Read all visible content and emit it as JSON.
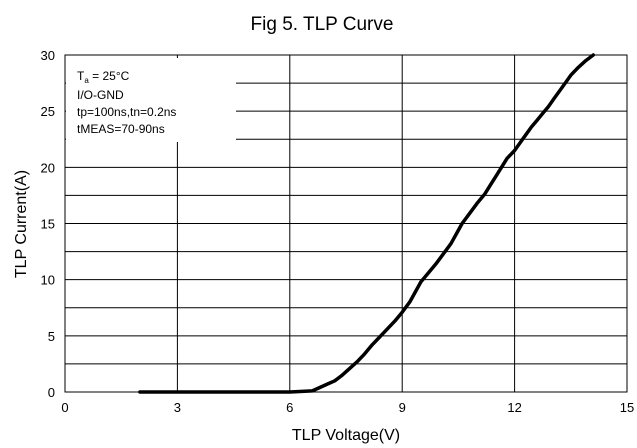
{
  "chart_data": {
    "type": "line",
    "title": "Fig 5. TLP Curve",
    "xlabel": "TLP Voltage(V)",
    "ylabel": "TLP Current(A)",
    "xlim": [
      0,
      15
    ],
    "ylim": [
      0,
      30
    ],
    "x_ticks": [
      0,
      3,
      6,
      9,
      12,
      15
    ],
    "y_ticks": [
      0,
      5,
      10,
      15,
      20,
      25,
      30
    ],
    "grid": true,
    "annotation": {
      "line1_main": "T",
      "line1_sub": "a",
      "line1_rest": " = 25°C",
      "line2": "I/O-GND",
      "line3": "tp=100ns,tn=0.2ns",
      "line4": "tMEAS=70-90ns"
    },
    "series": [
      {
        "color": "#000000",
        "x": [
          2.0,
          3.0,
          4.0,
          5.0,
          6.0,
          6.6,
          6.8,
          7.0,
          7.2,
          7.4,
          7.6,
          7.8,
          8.0,
          8.2,
          8.4,
          8.6,
          8.8,
          9.0,
          9.2,
          9.35,
          9.5,
          9.7,
          9.9,
          10.1,
          10.3,
          10.45,
          10.6,
          10.8,
          11.0,
          11.2,
          11.35,
          11.5,
          11.65,
          11.8,
          12.0,
          12.15,
          12.3,
          12.45,
          12.6,
          12.75,
          12.9,
          13.05,
          13.2,
          13.35,
          13.5,
          13.7,
          13.9,
          14.1
        ],
        "y": [
          0,
          0,
          0,
          0,
          0,
          0.1,
          0.4,
          0.7,
          1.0,
          1.5,
          2.1,
          2.7,
          3.4,
          4.2,
          4.9,
          5.6,
          6.3,
          7.1,
          8.0,
          8.9,
          9.8,
          10.6,
          11.4,
          12.3,
          13.2,
          14.1,
          15.0,
          15.9,
          16.8,
          17.6,
          18.4,
          19.2,
          20.0,
          20.8,
          21.5,
          22.2,
          22.9,
          23.6,
          24.2,
          24.8,
          25.4,
          26.1,
          26.8,
          27.5,
          28.2,
          28.9,
          29.5,
          30.0
        ]
      }
    ]
  }
}
